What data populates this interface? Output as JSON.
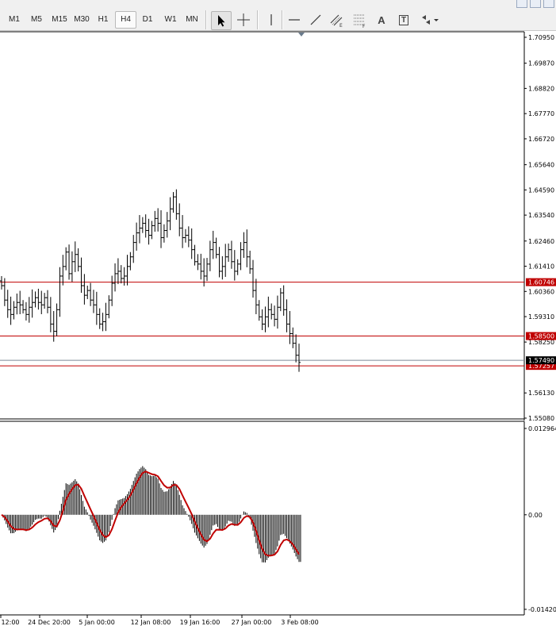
{
  "toolbar": {
    "timeframes": [
      {
        "label": "M1",
        "active": false
      },
      {
        "label": "M5",
        "active": false
      },
      {
        "label": "M15",
        "active": false
      },
      {
        "label": "M30",
        "active": false
      },
      {
        "label": "H1",
        "active": false
      },
      {
        "label": "H4",
        "active": true
      },
      {
        "label": "D1",
        "active": false
      },
      {
        "label": "W1",
        "active": false
      },
      {
        "label": "MN",
        "active": false
      }
    ],
    "tools": [
      {
        "name": "cursor-arrow-icon",
        "active": true
      },
      {
        "name": "crosshair-icon",
        "active": false
      },
      {
        "name": "vertical-line-icon",
        "active": false
      },
      {
        "name": "horizontal-line-icon",
        "active": false
      },
      {
        "name": "trendline-icon",
        "active": false
      },
      {
        "name": "equidistant-channel-icon",
        "active": false
      },
      {
        "name": "fibonacci-retracement-icon",
        "active": false
      },
      {
        "name": "text-icon",
        "active": false
      },
      {
        "name": "text-label-icon",
        "active": false
      },
      {
        "name": "arrows-dropdown-icon",
        "active": false
      }
    ],
    "text_tool_glyph": "A",
    "text_label_glyph": "T"
  },
  "colors": {
    "level_line": "#c00000",
    "level_tag": "#c00000",
    "bid_line": "#7d8a99",
    "bid_tag": "#000000",
    "signal_line": "#c00000",
    "bars": "#000000"
  },
  "price_axis": {
    "labels": [
      "1.70950",
      "1.69870",
      "1.68820",
      "1.67770",
      "1.66720",
      "1.65640",
      "1.64590",
      "1.63540",
      "1.62460",
      "1.61410",
      "1.60360",
      "1.59310",
      "1.58250",
      "1.56130",
      "1.55080"
    ],
    "min": 1.5508,
    "max": 1.7095
  },
  "price_levels": [
    {
      "value": 1.60746,
      "label": "1.60746"
    },
    {
      "value": 1.585,
      "label": "1.58500"
    },
    {
      "value": 1.57257,
      "label": "1.57257"
    }
  ],
  "bid": {
    "value": 1.5749,
    "label": "1.57490"
  },
  "macd_axis": {
    "labels": [
      "0.012964",
      "0.00",
      "-0.01420"
    ],
    "max": 0.012964,
    "min": -0.0142
  },
  "time_axis": {
    "labels": [
      "12:00",
      "24 Dec 20:00",
      "5 Jan 00:00",
      "12 Jan 08:00",
      "19 Jan 16:00",
      "27 Jan 00:00",
      "3 Feb 08:00"
    ]
  },
  "chart_data": {
    "type": "ohlc",
    "instrument_timeframe": "H4",
    "closes": [
      1.606,
      1.6,
      1.596,
      1.594,
      1.597,
      1.599,
      1.598,
      1.596,
      1.594,
      1.597,
      1.599,
      1.601,
      1.599,
      1.598,
      1.601,
      1.597,
      1.59,
      1.587,
      1.596,
      1.61,
      1.614,
      1.62,
      1.611,
      1.616,
      1.619,
      1.614,
      1.606,
      1.602,
      1.604,
      1.6,
      1.598,
      1.594,
      1.59,
      1.591,
      1.594,
      1.6,
      1.607,
      1.611,
      1.612,
      1.609,
      1.61,
      1.614,
      1.618,
      1.624,
      1.628,
      1.63,
      1.632,
      1.629,
      1.627,
      1.631,
      1.634,
      1.632,
      1.626,
      1.629,
      1.633,
      1.638,
      1.643,
      1.636,
      1.63,
      1.626,
      1.627,
      1.625,
      1.621,
      1.616,
      1.615,
      1.612,
      1.61,
      1.615,
      1.621,
      1.624,
      1.619,
      1.612,
      1.614,
      1.618,
      1.621,
      1.616,
      1.612,
      1.615,
      1.621,
      1.624,
      1.618,
      1.613,
      1.604,
      1.598,
      1.593,
      1.59,
      1.593,
      1.596,
      1.594,
      1.592,
      1.597,
      1.603,
      1.596,
      1.59,
      1.586,
      1.582,
      1.577,
      1.574
    ]
  }
}
